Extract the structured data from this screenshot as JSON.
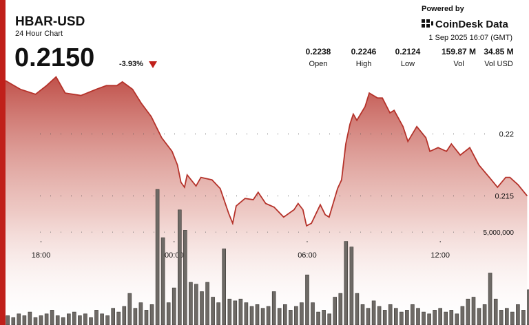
{
  "header": {
    "title": "HBAR-USD",
    "subtitle": "24 Hour Chart",
    "price": "0.2150",
    "change": "-3.93%",
    "powered_by": "Powered by",
    "brand": "CoinDesk Data",
    "timestamp": "1 Sep 2025 16:07 (GMT)"
  },
  "stats": [
    {
      "value": "0.2238",
      "label": "Open"
    },
    {
      "value": "0.2246",
      "label": "High"
    },
    {
      "value": "0.2124",
      "label": "Low"
    },
    {
      "value": "159.87 M",
      "label": "Vol"
    },
    {
      "value": "34.85 M",
      "label": "Vol USD"
    }
  ],
  "chart_data": [
    {
      "type": "area",
      "color": "#b5322a",
      "x": [
        16.4,
        17.07,
        17.75,
        18.25,
        18.68,
        19.09,
        19.8,
        20.49,
        20.95,
        21.42,
        21.67,
        22.13,
        22.51,
        22.97,
        23.44,
        23.91,
        24.15,
        24.31,
        24.47,
        24.59,
        24.99,
        25.21,
        25.71,
        26.08,
        26.46,
        26.64,
        26.8,
        27.2,
        27.57,
        27.79,
        28.13,
        28.51,
        28.94,
        29.41,
        29.59,
        29.81,
        29.97,
        30.19,
        30.59,
        30.81,
        30.99,
        31.37,
        31.55,
        31.74,
        31.93,
        32.08,
        32.24,
        32.61,
        32.8,
        33.17,
        33.39,
        33.73,
        33.92,
        34.32,
        34.54,
        34.94,
        35.35,
        35.53,
        35.9,
        36.28,
        36.5,
        36.9,
        37.33,
        37.74,
        38.21,
        38.58,
        38.95,
        39.14,
        39.51,
        39.92
      ],
      "values": [
        0.2243,
        0.2236,
        0.2232,
        0.2239,
        0.2246,
        0.2233,
        0.2231,
        0.2236,
        0.2239,
        0.2239,
        0.2242,
        0.2236,
        0.2225,
        0.2214,
        0.2197,
        0.2186,
        0.2175,
        0.2161,
        0.2157,
        0.2167,
        0.2158,
        0.2165,
        0.2163,
        0.2156,
        0.2136,
        0.2128,
        0.2142,
        0.2148,
        0.2147,
        0.2153,
        0.2144,
        0.2141,
        0.2133,
        0.2139,
        0.2144,
        0.2139,
        0.2126,
        0.2128,
        0.2143,
        0.2135,
        0.2133,
        0.2156,
        0.2163,
        0.2192,
        0.2208,
        0.2216,
        0.2211,
        0.2222,
        0.2233,
        0.2229,
        0.2229,
        0.2217,
        0.2219,
        0.2206,
        0.2194,
        0.2206,
        0.2197,
        0.2186,
        0.2189,
        0.2186,
        0.2192,
        0.2183,
        0.2189,
        0.2175,
        0.2165,
        0.2157,
        0.2165,
        0.2165,
        0.2159,
        0.215
      ],
      "xlim": [
        16.4,
        40
      ],
      "xticks": [
        {
          "value": 18,
          "label": "18:00"
        },
        {
          "value": 24,
          "label": "00:00"
        },
        {
          "value": 30,
          "label": "06:00"
        },
        {
          "value": 36,
          "label": "12:00"
        }
      ],
      "ylim": [
        0.2046,
        0.2308
      ],
      "yticks": [
        0.22,
        0.215
      ],
      "grid": true
    },
    {
      "type": "bar",
      "color": "#6e6a66",
      "x": [
        16.5,
        16.75,
        17,
        17.25,
        17.5,
        17.75,
        18,
        18.25,
        18.5,
        18.75,
        19,
        19.25,
        19.5,
        19.75,
        20,
        20.25,
        20.5,
        20.75,
        21,
        21.25,
        21.5,
        21.75,
        22,
        22.25,
        22.5,
        22.75,
        23,
        23.25,
        23.5,
        23.75,
        24,
        24.25,
        24.5,
        24.75,
        25,
        25.25,
        25.5,
        25.75,
        26,
        26.25,
        26.5,
        26.75,
        27,
        27.25,
        27.5,
        27.75,
        28,
        28.25,
        28.5,
        28.75,
        29,
        29.25,
        29.5,
        29.75,
        30,
        30.25,
        30.5,
        30.75,
        31,
        31.25,
        31.5,
        31.75,
        32,
        32.25,
        32.5,
        32.75,
        33,
        33.25,
        33.5,
        33.75,
        34,
        34.25,
        34.5,
        34.75,
        35,
        35.25,
        35.5,
        35.75,
        36,
        36.25,
        36.5,
        36.75,
        37,
        37.25,
        37.5,
        37.75,
        38,
        38.25,
        38.5,
        38.75,
        39,
        39.25,
        39.5,
        39.75,
        40
      ],
      "values": [
        500000,
        400000,
        600000,
        500000,
        700000,
        400000,
        500000,
        600000,
        800000,
        500000,
        400000,
        600000,
        700000,
        500000,
        600000,
        400000,
        800000,
        600000,
        500000,
        900000,
        700000,
        1000000,
        1700000,
        900000,
        1200000,
        800000,
        1100000,
        7300000,
        4700000,
        1200000,
        2000000,
        6200000,
        5100000,
        2300000,
        2200000,
        1800000,
        2300000,
        1500000,
        1200000,
        4100000,
        1400000,
        1300000,
        1400000,
        1200000,
        1000000,
        1100000,
        900000,
        1000000,
        1800000,
        900000,
        1100000,
        800000,
        1000000,
        1200000,
        2700000,
        1200000,
        700000,
        800000,
        600000,
        1500000,
        1700000,
        4500000,
        4200000,
        1700000,
        1100000,
        900000,
        1300000,
        1000000,
        800000,
        1100000,
        900000,
        700000,
        800000,
        1100000,
        900000,
        700000,
        600000,
        800000,
        900000,
        700000,
        800000,
        600000,
        1000000,
        1400000,
        1500000,
        900000,
        1100000,
        2800000,
        1400000,
        800000,
        900000,
        700000,
        1100000,
        800000,
        1900000
      ],
      "xlim": [
        16.4,
        40
      ],
      "ylim": [
        0,
        17500000
      ],
      "yticks": [
        {
          "value": 5000000,
          "label": "5,000,000"
        }
      ],
      "grid": true
    }
  ]
}
